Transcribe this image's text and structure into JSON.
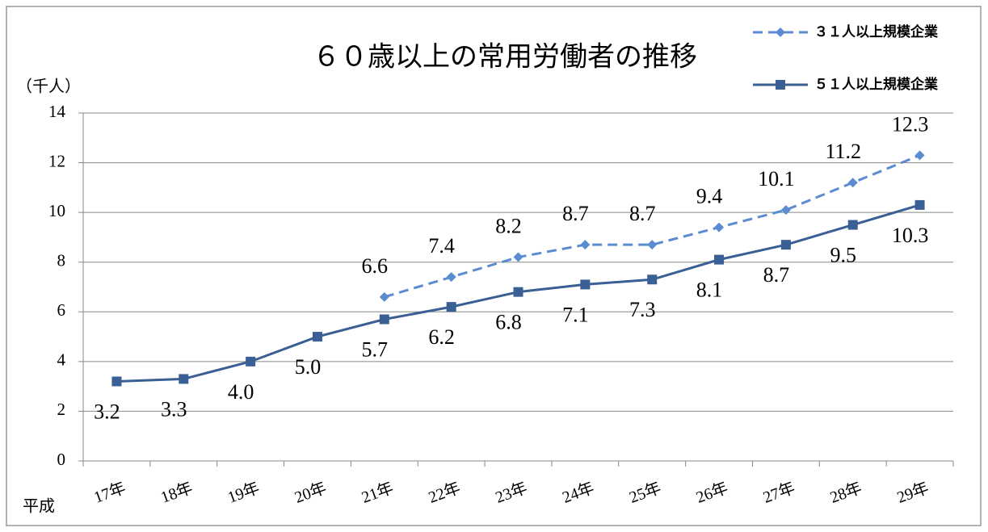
{
  "chart_data": {
    "type": "line",
    "title": "６０歳以上の常用労働者の推移",
    "y_label": "（千人）",
    "x_label": "平成",
    "categories": [
      "17年",
      "18年",
      "19年",
      "20年",
      "21年",
      "22年",
      "23年",
      "24年",
      "25年",
      "26年",
      "27年",
      "28年",
      "29年"
    ],
    "series": [
      {
        "name": "３１人以上規模企業",
        "color": "#5b8bd0",
        "dashed": true,
        "marker": "diamond",
        "values": [
          null,
          null,
          null,
          null,
          6.6,
          7.4,
          8.2,
          8.7,
          8.7,
          9.4,
          10.1,
          11.2,
          12.3
        ],
        "value_labels": [
          null,
          null,
          null,
          null,
          "6.6",
          "7.4",
          "8.2",
          "8.7",
          "8.7",
          "9.4",
          "10.1",
          "11.2",
          "12.3"
        ]
      },
      {
        "name": "５１人以上規模企業",
        "color": "#3a5f94",
        "dashed": false,
        "marker": "square",
        "values": [
          3.2,
          3.3,
          4.0,
          5.0,
          5.7,
          6.2,
          6.8,
          7.1,
          7.3,
          8.1,
          8.7,
          9.5,
          10.3
        ],
        "value_labels": [
          "3.2",
          "3.3",
          "4.0",
          "5.0",
          "5.7",
          "6.2",
          "6.8",
          "7.1",
          "7.3",
          "8.1",
          "8.7",
          "9.5",
          "10.3"
        ]
      }
    ],
    "ylim": [
      0,
      14
    ],
    "yticks": [
      0,
      2,
      4,
      6,
      8,
      10,
      12,
      14
    ],
    "grid": true,
    "legend": "top-right"
  }
}
